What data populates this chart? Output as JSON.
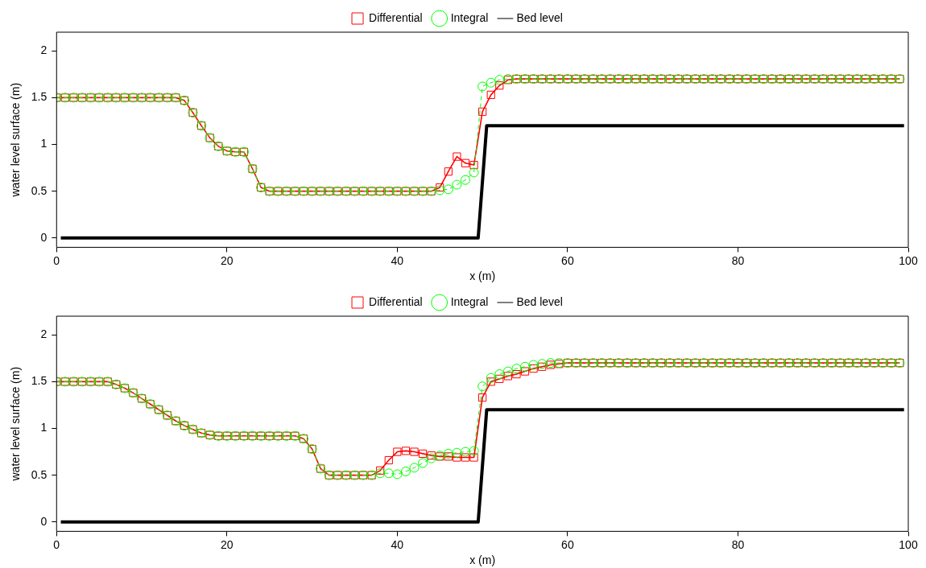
{
  "chart_data": [
    {
      "type": "line",
      "xlabel": "x (m)",
      "ylabel": "water level surface (m)",
      "legend": "top",
      "grid": false,
      "xlim": [
        0,
        100
      ],
      "xticks": [
        0,
        20,
        40,
        60,
        80,
        100
      ],
      "ylim": [
        -0.1,
        2.2
      ],
      "yticks": [
        0,
        0.5,
        1,
        1.5,
        2
      ],
      "x": [
        0,
        1,
        2,
        3,
        4,
        5,
        6,
        7,
        8,
        9,
        10,
        11,
        12,
        13,
        14,
        15,
        16,
        17,
        18,
        19,
        20,
        21,
        22,
        23,
        24,
        25,
        26,
        27,
        28,
        29,
        30,
        31,
        32,
        33,
        34,
        35,
        36,
        37,
        38,
        39,
        40,
        41,
        42,
        43,
        44,
        45,
        46,
        47,
        48,
        49,
        50,
        51,
        52,
        53,
        54,
        55,
        56,
        57,
        58,
        59,
        60,
        61,
        62,
        63,
        64,
        65,
        66,
        67,
        68,
        69,
        70,
        71,
        72,
        73,
        74,
        75,
        76,
        77,
        78,
        79,
        80,
        81,
        82,
        83,
        84,
        85,
        86,
        87,
        88,
        89,
        90,
        91,
        92,
        93,
        94,
        95,
        96,
        97,
        98,
        99
      ],
      "series": [
        {
          "name": "Differential",
          "color": "#ff0000",
          "marker": "square",
          "line_style": "solid",
          "values": [
            1.5,
            1.5,
            1.5,
            1.5,
            1.5,
            1.5,
            1.5,
            1.5,
            1.5,
            1.5,
            1.5,
            1.5,
            1.5,
            1.5,
            1.5,
            1.47,
            1.34,
            1.2,
            1.07,
            0.98,
            0.93,
            0.92,
            0.92,
            0.74,
            0.54,
            0.5,
            0.5,
            0.5,
            0.5,
            0.5,
            0.5,
            0.5,
            0.5,
            0.5,
            0.5,
            0.5,
            0.5,
            0.5,
            0.5,
            0.5,
            0.5,
            0.5,
            0.5,
            0.5,
            0.5,
            0.54,
            0.71,
            0.87,
            0.8,
            0.78,
            1.35,
            1.53,
            1.63,
            1.69,
            1.7,
            1.7,
            1.7,
            1.7,
            1.7,
            1.7,
            1.7,
            1.7,
            1.7,
            1.7,
            1.7,
            1.7,
            1.7,
            1.7,
            1.7,
            1.7,
            1.7,
            1.7,
            1.7,
            1.7,
            1.7,
            1.7,
            1.7,
            1.7,
            1.7,
            1.7,
            1.7,
            1.7,
            1.7,
            1.7,
            1.7,
            1.7,
            1.7,
            1.7,
            1.7,
            1.7,
            1.7,
            1.7,
            1.7,
            1.7,
            1.7,
            1.7,
            1.7,
            1.7,
            1.7,
            1.7
          ]
        },
        {
          "name": "Integral",
          "color": "#00ff00",
          "marker": "circle",
          "line_style": "dashed",
          "values": [
            1.5,
            1.5,
            1.5,
            1.5,
            1.5,
            1.5,
            1.5,
            1.5,
            1.5,
            1.5,
            1.5,
            1.5,
            1.5,
            1.5,
            1.5,
            1.47,
            1.34,
            1.2,
            1.07,
            0.98,
            0.93,
            0.92,
            0.92,
            0.74,
            0.54,
            0.5,
            0.5,
            0.5,
            0.5,
            0.5,
            0.5,
            0.5,
            0.5,
            0.5,
            0.5,
            0.5,
            0.5,
            0.5,
            0.5,
            0.5,
            0.5,
            0.5,
            0.5,
            0.5,
            0.5,
            0.51,
            0.52,
            0.57,
            0.62,
            0.7,
            1.62,
            1.66,
            1.69,
            1.7,
            1.7,
            1.7,
            1.7,
            1.7,
            1.7,
            1.7,
            1.7,
            1.7,
            1.7,
            1.7,
            1.7,
            1.7,
            1.7,
            1.7,
            1.7,
            1.7,
            1.7,
            1.7,
            1.7,
            1.7,
            1.7,
            1.7,
            1.7,
            1.7,
            1.7,
            1.7,
            1.7,
            1.7,
            1.7,
            1.7,
            1.7,
            1.7,
            1.7,
            1.7,
            1.7,
            1.7,
            1.7,
            1.7,
            1.7,
            1.7,
            1.7,
            1.7,
            1.7,
            1.7,
            1.7,
            1.7
          ]
        },
        {
          "name": "Bed level",
          "color": "#000000",
          "marker": "none",
          "line_style": "solid",
          "x": [
            0.5,
            49.5,
            50.5,
            99.5
          ],
          "values": [
            0,
            0,
            1.2,
            1.2
          ]
        }
      ]
    },
    {
      "type": "line",
      "xlabel": "x (m)",
      "ylabel": "water level surface (m)",
      "legend": "top",
      "grid": false,
      "xlim": [
        0,
        100
      ],
      "xticks": [
        0,
        20,
        40,
        60,
        80,
        100
      ],
      "ylim": [
        -0.1,
        2.2
      ],
      "yticks": [
        0,
        0.5,
        1,
        1.5,
        2
      ],
      "x": [
        0,
        1,
        2,
        3,
        4,
        5,
        6,
        7,
        8,
        9,
        10,
        11,
        12,
        13,
        14,
        15,
        16,
        17,
        18,
        19,
        20,
        21,
        22,
        23,
        24,
        25,
        26,
        27,
        28,
        29,
        30,
        31,
        32,
        33,
        34,
        35,
        36,
        37,
        38,
        39,
        40,
        41,
        42,
        43,
        44,
        45,
        46,
        47,
        48,
        49,
        50,
        51,
        52,
        53,
        54,
        55,
        56,
        57,
        58,
        59,
        60,
        61,
        62,
        63,
        64,
        65,
        66,
        67,
        68,
        69,
        70,
        71,
        72,
        73,
        74,
        75,
        76,
        77,
        78,
        79,
        80,
        81,
        82,
        83,
        84,
        85,
        86,
        87,
        88,
        89,
        90,
        91,
        92,
        93,
        94,
        95,
        96,
        97,
        98,
        99
      ],
      "series": [
        {
          "name": "Differential",
          "color": "#ff0000",
          "marker": "square",
          "line_style": "solid",
          "values": [
            1.5,
            1.5,
            1.5,
            1.5,
            1.5,
            1.5,
            1.5,
            1.47,
            1.43,
            1.38,
            1.32,
            1.26,
            1.2,
            1.14,
            1.08,
            1.03,
            0.99,
            0.95,
            0.93,
            0.92,
            0.92,
            0.92,
            0.92,
            0.92,
            0.92,
            0.92,
            0.92,
            0.92,
            0.92,
            0.89,
            0.78,
            0.57,
            0.5,
            0.5,
            0.5,
            0.5,
            0.5,
            0.5,
            0.55,
            0.66,
            0.75,
            0.76,
            0.75,
            0.73,
            0.71,
            0.7,
            0.7,
            0.69,
            0.69,
            0.69,
            1.33,
            1.5,
            1.53,
            1.56,
            1.58,
            1.61,
            1.64,
            1.66,
            1.68,
            1.69,
            1.7,
            1.7,
            1.7,
            1.7,
            1.7,
            1.7,
            1.7,
            1.7,
            1.7,
            1.7,
            1.7,
            1.7,
            1.7,
            1.7,
            1.7,
            1.7,
            1.7,
            1.7,
            1.7,
            1.7,
            1.7,
            1.7,
            1.7,
            1.7,
            1.7,
            1.7,
            1.7,
            1.7,
            1.7,
            1.7,
            1.7,
            1.7,
            1.7,
            1.7,
            1.7,
            1.7,
            1.7,
            1.7,
            1.7,
            1.7
          ]
        },
        {
          "name": "Integral",
          "color": "#00ff00",
          "marker": "circle",
          "line_style": "dashed",
          "values": [
            1.5,
            1.5,
            1.5,
            1.5,
            1.5,
            1.5,
            1.5,
            1.47,
            1.43,
            1.38,
            1.32,
            1.26,
            1.2,
            1.14,
            1.08,
            1.03,
            0.99,
            0.95,
            0.93,
            0.92,
            0.92,
            0.92,
            0.92,
            0.92,
            0.92,
            0.92,
            0.92,
            0.92,
            0.92,
            0.89,
            0.78,
            0.57,
            0.5,
            0.5,
            0.5,
            0.5,
            0.5,
            0.5,
            0.52,
            0.52,
            0.51,
            0.54,
            0.58,
            0.63,
            0.68,
            0.71,
            0.73,
            0.74,
            0.75,
            0.76,
            1.45,
            1.54,
            1.58,
            1.61,
            1.64,
            1.66,
            1.68,
            1.69,
            1.7,
            1.7,
            1.7,
            1.7,
            1.7,
            1.7,
            1.7,
            1.7,
            1.7,
            1.7,
            1.7,
            1.7,
            1.7,
            1.7,
            1.7,
            1.7,
            1.7,
            1.7,
            1.7,
            1.7,
            1.7,
            1.7,
            1.7,
            1.7,
            1.7,
            1.7,
            1.7,
            1.7,
            1.7,
            1.7,
            1.7,
            1.7,
            1.7,
            1.7,
            1.7,
            1.7,
            1.7,
            1.7,
            1.7,
            1.7,
            1.7,
            1.7
          ]
        },
        {
          "name": "Bed level",
          "color": "#000000",
          "marker": "none",
          "line_style": "solid",
          "x": [
            0.5,
            49.5,
            50.5,
            99.5
          ],
          "values": [
            0,
            0,
            1.2,
            1.2
          ]
        }
      ]
    }
  ]
}
